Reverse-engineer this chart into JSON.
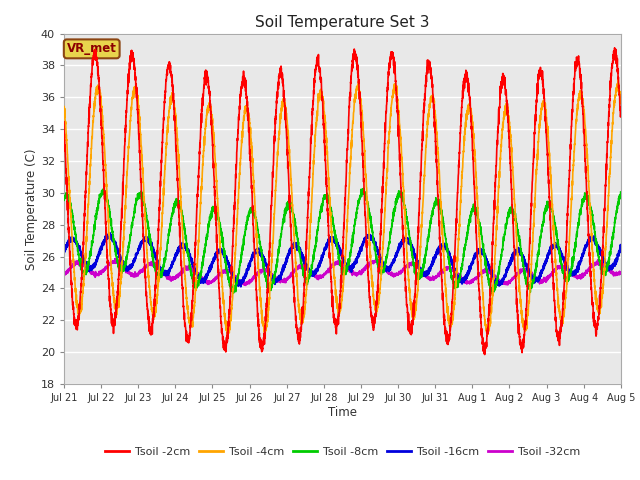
{
  "title": "Soil Temperature Set 3",
  "xlabel": "Time",
  "ylabel": "Soil Temperature (C)",
  "ylim": [
    18,
    40
  ],
  "days": 15,
  "samples_per_day": 288,
  "plot_bg_color": "#e8e8e8",
  "fig_bg_color": "#ffffff",
  "annotation_text": "VR_met",
  "annotation_box_facecolor": "#e8d44d",
  "annotation_box_edgecolor": "#8b4513",
  "annotation_text_color": "#8b0000",
  "series": {
    "Tsoil -2cm": {
      "color": "#ff0000",
      "lw": 1.2
    },
    "Tsoil -4cm": {
      "color": "#ffa500",
      "lw": 1.2
    },
    "Tsoil -8cm": {
      "color": "#00cc00",
      "lw": 1.2
    },
    "Tsoil -16cm": {
      "color": "#0000dd",
      "lw": 1.5
    },
    "Tsoil -32cm": {
      "color": "#cc00cc",
      "lw": 1.2
    }
  },
  "tick_labels": [
    "Jul 21",
    "Jul 22",
    "Jul 23",
    "Jul 24",
    "Jul 25",
    "Jul 26",
    "Jul 27",
    "Jul 28",
    "Jul 29",
    "Jul 30",
    "Jul 31",
    "Aug 1",
    "Aug 2",
    "Aug 3",
    "Aug 4",
    "Aug 5"
  ],
  "depth_params": {
    "2cm": {
      "mean": 29.5,
      "amp": 8.5,
      "phase": 0.0,
      "noise": 0.2,
      "trend_amp": 0.8,
      "trend_phase": 0.5
    },
    "4cm": {
      "mean": 29.0,
      "amp": 7.0,
      "phase": 0.08,
      "noise": 0.15,
      "trend_amp": 0.7,
      "trend_phase": 0.5
    },
    "8cm": {
      "mean": 27.0,
      "amp": 2.5,
      "phase": 0.22,
      "noise": 0.12,
      "trend_amp": 0.6,
      "trend_phase": 0.5
    },
    "16cm": {
      "mean": 25.8,
      "amp": 1.0,
      "phase": 0.38,
      "noise": 0.08,
      "trend_amp": 0.5,
      "trend_phase": 0.5
    },
    "32cm": {
      "mean": 25.0,
      "amp": 0.4,
      "phase": 0.55,
      "noise": 0.06,
      "trend_amp": 0.3,
      "trend_phase": 0.5
    }
  }
}
